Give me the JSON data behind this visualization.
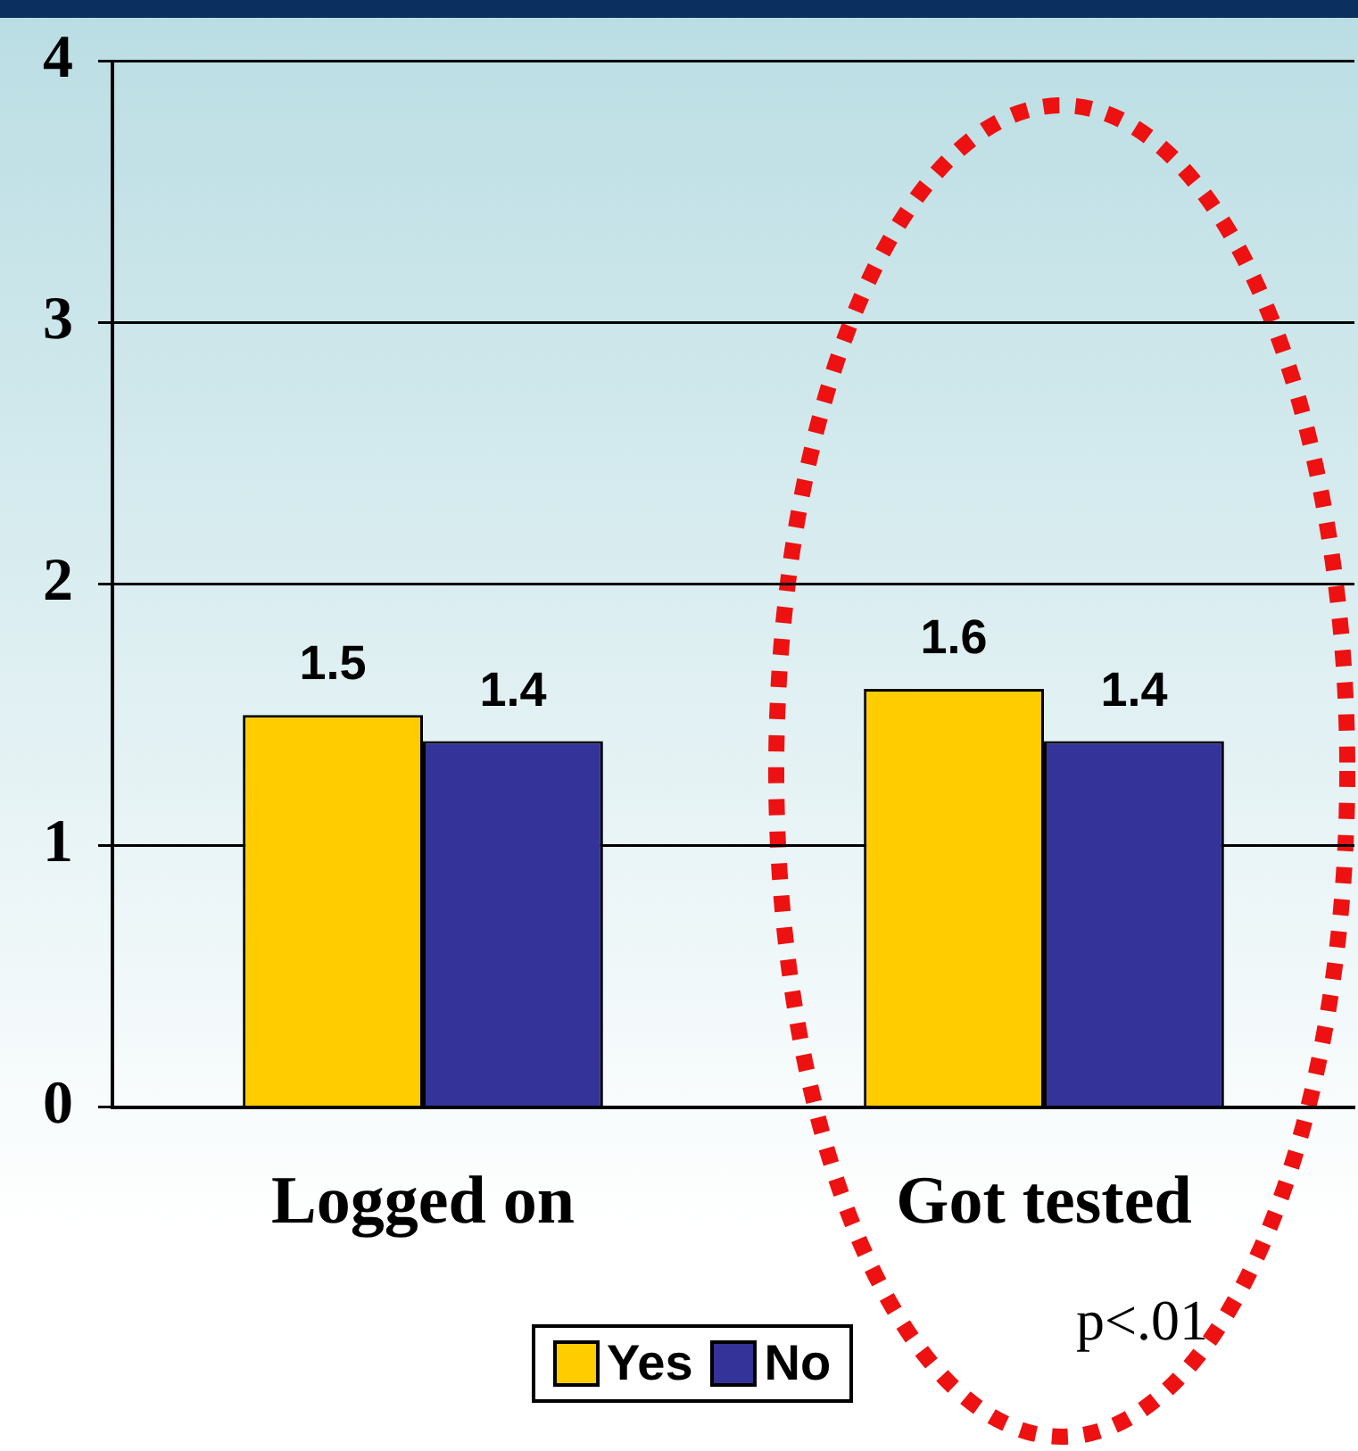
{
  "chart_data": {
    "type": "bar",
    "categories": [
      "Logged on",
      "Got tested"
    ],
    "series": [
      {
        "name": "Yes",
        "color": "#ffcc00",
        "values": [
          1.5,
          1.6
        ]
      },
      {
        "name": "No",
        "color": "#333399",
        "values": [
          1.4,
          1.4
        ]
      }
    ],
    "ylim": [
      0,
      4
    ],
    "yticks": [
      0,
      1,
      2,
      3,
      4
    ],
    "grid": "y",
    "legend": "bottom",
    "data_labels": true,
    "annotations": [
      "p<.01"
    ]
  }
}
